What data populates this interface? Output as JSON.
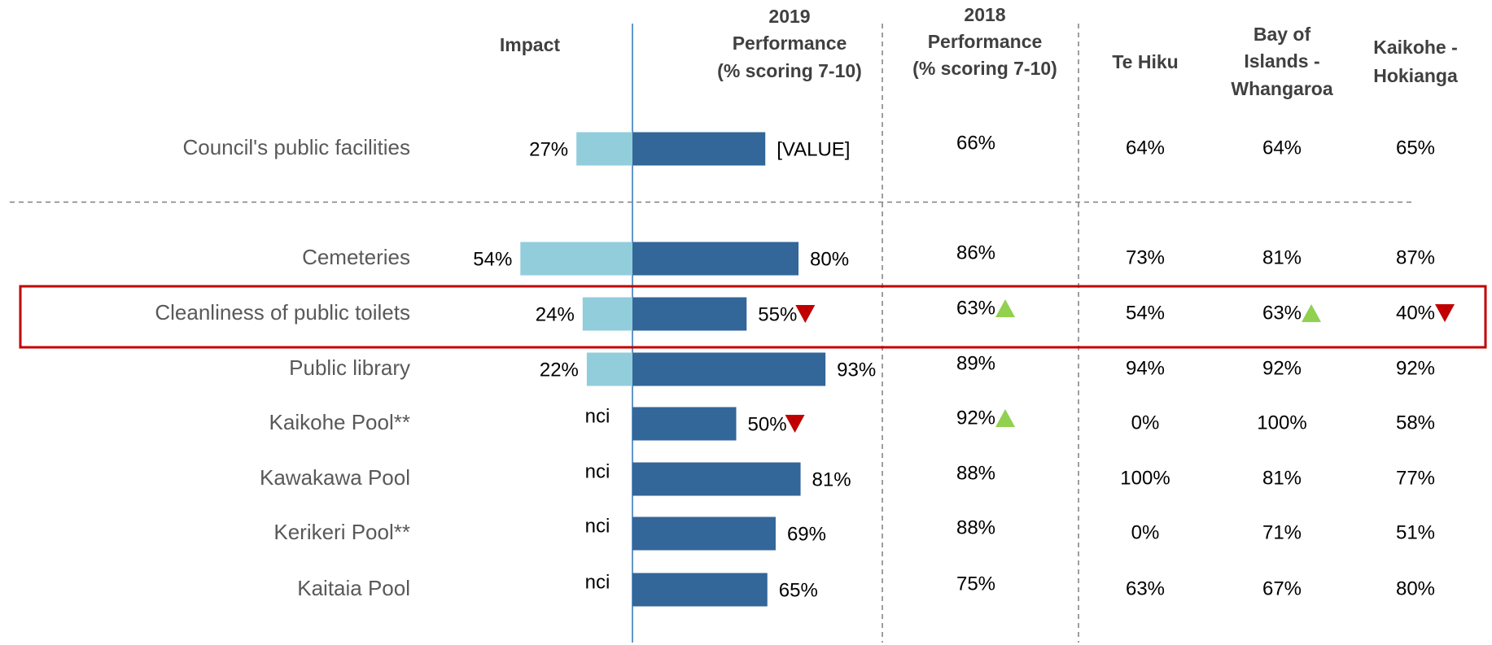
{
  "chart_data": {
    "type": "diverging-bar",
    "headers": {
      "impact": [
        "Impact"
      ],
      "perf2019": [
        "2019",
        "Performance",
        "(% scoring 7-10)"
      ],
      "perf2018": [
        "2018",
        "Performance",
        "(% scoring 7-10)"
      ],
      "te_hiku": [
        "Te Hiku"
      ],
      "bay_of_islands": [
        "Bay of",
        "Islands -",
        "Whangaroa"
      ],
      "kaikohe": [
        "Kaikohe -",
        "Hokianga"
      ]
    },
    "categories": [
      "Council's public facilities",
      "Cemeteries",
      "Cleanliness of public toilets",
      "Public library",
      "Kaikohe Pool**",
      "Kawakawa Pool",
      "Kerikeri Pool**",
      "Kaitaia Pool"
    ],
    "series": [
      {
        "name": "Impact",
        "color": "#92cddc",
        "values": [
          27,
          54,
          24,
          22,
          null,
          null,
          null,
          null
        ],
        "value_labels": [
          "27%",
          "54%",
          "24%",
          "22%",
          "nci",
          "nci",
          "nci",
          "nci"
        ]
      },
      {
        "name": "2019 Performance",
        "color": "#336699",
        "values": [
          64,
          80,
          55,
          93,
          50,
          81,
          69,
          65
        ],
        "value_labels": [
          "[VALUE]",
          "80%",
          "55%",
          "93%",
          "50%",
          "81%",
          "69%",
          "65%"
        ],
        "arrows": [
          null,
          null,
          "down",
          null,
          "down",
          null,
          null,
          null
        ]
      }
    ],
    "table": {
      "perf2018": {
        "values": [
          "66%",
          "86%",
          "63%",
          "89%",
          "92%",
          "88%",
          "88%",
          "75%"
        ],
        "arrows": [
          null,
          null,
          "up",
          null,
          "up",
          null,
          null,
          null
        ]
      },
      "te_hiku": {
        "values": [
          "64%",
          "73%",
          "54%",
          "94%",
          "0%",
          "100%",
          "0%",
          "63%"
        ],
        "arrows": [
          null,
          null,
          null,
          null,
          null,
          null,
          null,
          null
        ]
      },
      "bay_of_islands": {
        "values": [
          "64%",
          "81%",
          "63%",
          "92%",
          "100%",
          "81%",
          "71%",
          "67%"
        ],
        "arrows": [
          null,
          null,
          "up",
          null,
          null,
          null,
          null,
          null
        ]
      },
      "kaikohe": {
        "values": [
          "65%",
          "87%",
          "40%",
          "92%",
          "58%",
          "77%",
          "51%",
          "80%"
        ],
        "arrows": [
          null,
          null,
          "down",
          null,
          null,
          null,
          null,
          null
        ]
      }
    },
    "highlight_row": 2,
    "separator_after_row": 0
  }
}
